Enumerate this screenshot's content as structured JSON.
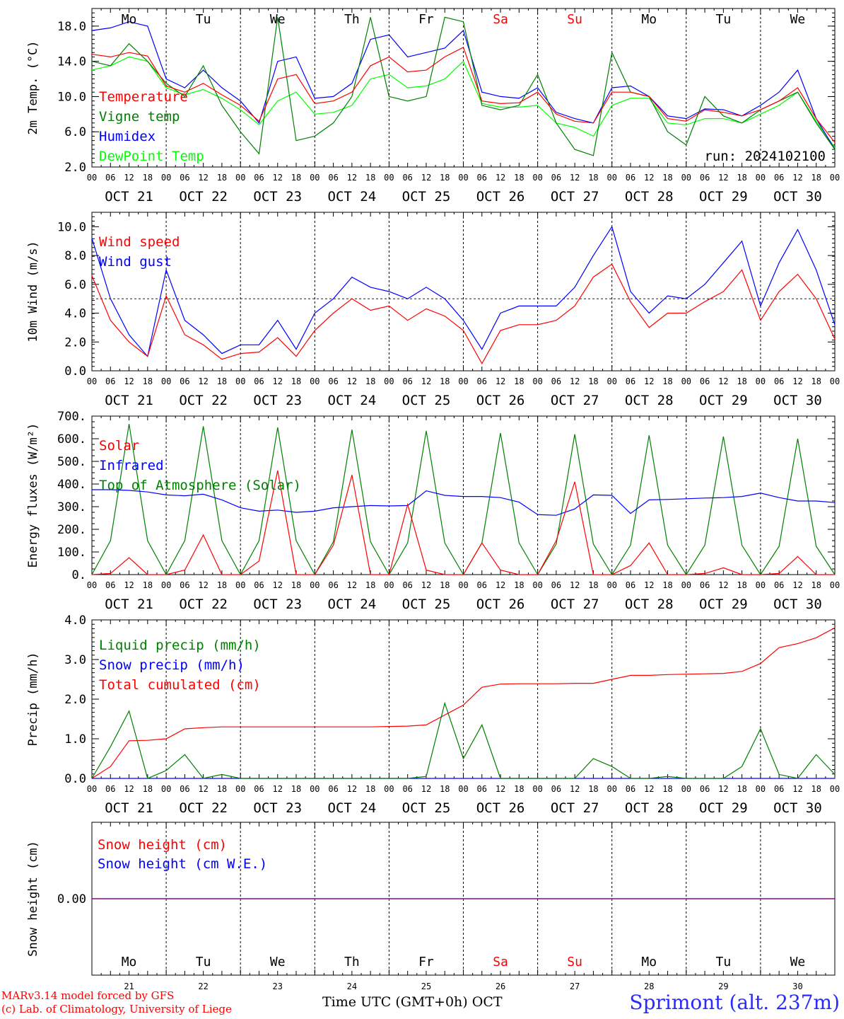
{
  "run_label": "run: 2024102100",
  "credits": {
    "line1": "MARv3.14 model forced by GFS",
    "line2": "(c) Lab. of Climatology, University of Liege"
  },
  "station": "Sprimont (alt. 237m)",
  "time_axis_label": "Time UTC (GMT+0h)",
  "month_label": "OCT",
  "weekend_color": "#ff0000",
  "weekdays": [
    "Mo",
    "Tu",
    "We",
    "Th",
    "Fr",
    "Sa",
    "Su",
    "Mo",
    "Tu",
    "We"
  ],
  "weekend_flags": [
    false,
    false,
    false,
    false,
    false,
    true,
    true,
    false,
    false,
    false
  ],
  "day_dates": [
    "OCT 21",
    "OCT 22",
    "OCT 23",
    "OCT 24",
    "OCT 25",
    "OCT 26",
    "OCT 27",
    "OCT 28",
    "OCT 29",
    "OCT 30"
  ],
  "day_numbers": [
    "21",
    "22",
    "23",
    "24",
    "25",
    "26",
    "27",
    "28",
    "29",
    "30"
  ],
  "hour_labels": [
    "00",
    "06",
    "12",
    "18"
  ],
  "chart_data": [
    {
      "id": "temperature",
      "type": "line",
      "ylabel": "2m Temp. (°C)",
      "ylim": [
        2,
        20
      ],
      "yticks": [
        2,
        6,
        10,
        14,
        18
      ],
      "ytick_labels": [
        "2.0",
        "6.0",
        "10.0",
        "14.0",
        "18.0"
      ],
      "x": [
        0,
        6,
        12,
        18,
        24,
        30,
        36,
        42,
        48,
        54,
        60,
        66,
        72,
        78,
        84,
        90,
        96,
        102,
        108,
        114,
        120,
        126,
        132,
        138,
        144,
        150,
        156,
        162,
        168,
        174,
        180,
        186,
        192,
        198,
        204,
        210,
        216,
        222,
        228,
        234,
        240
      ],
      "series": [
        {
          "name": "Temperature",
          "color": "#ff0000",
          "values": [
            14.8,
            14.5,
            15.0,
            14.6,
            11.2,
            10.5,
            11.5,
            10.2,
            9.0,
            7.2,
            12.0,
            12.5,
            9.2,
            9.5,
            10.5,
            13.5,
            14.5,
            12.8,
            13.0,
            14.5,
            15.6,
            9.5,
            9.2,
            9.3,
            10.5,
            8.0,
            7.2,
            7.0,
            10.5,
            10.5,
            10.0,
            7.5,
            7.2,
            8.5,
            8.2,
            7.8,
            8.5,
            9.5,
            11.0,
            7.5,
            4.8
          ]
        },
        {
          "name": "Vigne temp",
          "color": "#008000",
          "values": [
            14.0,
            13.5,
            16.0,
            14.0,
            11.5,
            10.0,
            13.5,
            9.0,
            6.0,
            3.5,
            19.0,
            5.0,
            5.5,
            7.0,
            10.0,
            19.0,
            10.0,
            9.5,
            10.0,
            19.0,
            18.5,
            9.0,
            8.5,
            9.0,
            12.5,
            7.0,
            4.0,
            3.3,
            15.0,
            10.5,
            10.0,
            6.0,
            4.5,
            10.0,
            7.8,
            7.0,
            8.5,
            9.5,
            10.5,
            7.0,
            4.0
          ]
        },
        {
          "name": "Humidex",
          "color": "#0000ff",
          "values": [
            17.5,
            17.8,
            18.5,
            18.0,
            12.0,
            11.0,
            13.0,
            11.0,
            9.5,
            7.0,
            14.0,
            14.5,
            9.8,
            10.0,
            11.5,
            16.5,
            17.0,
            14.5,
            15.0,
            15.5,
            17.5,
            10.5,
            10.0,
            9.8,
            11.0,
            8.2,
            7.5,
            7.0,
            11.0,
            11.2,
            10.0,
            7.8,
            7.5,
            8.6,
            8.5,
            7.8,
            9.0,
            10.5,
            13.0,
            7.5,
            4.0
          ]
        },
        {
          "name": "DewPoint Temp",
          "color": "#00ff00",
          "values": [
            13.0,
            13.5,
            14.5,
            14.0,
            11.0,
            10.2,
            10.8,
            9.8,
            8.5,
            6.8,
            9.5,
            10.5,
            8.0,
            8.2,
            9.0,
            12.0,
            12.5,
            11.0,
            11.2,
            12.0,
            14.0,
            9.2,
            8.8,
            8.8,
            9.0,
            7.0,
            6.5,
            5.5,
            9.0,
            9.8,
            9.8,
            7.0,
            6.8,
            7.5,
            7.5,
            7.0,
            8.0,
            9.0,
            10.5,
            7.2,
            4.2
          ]
        }
      ]
    },
    {
      "id": "wind",
      "type": "line",
      "ylabel": "10m Wind (m/s)",
      "ylim": [
        0,
        11
      ],
      "yticks": [
        0,
        2,
        4,
        6,
        8,
        10
      ],
      "ytick_labels": [
        "0.0",
        "2.0",
        "4.0",
        "6.0",
        "8.0",
        "10.0"
      ],
      "reference_line": 5,
      "x": [
        0,
        6,
        12,
        18,
        24,
        30,
        36,
        42,
        48,
        54,
        60,
        66,
        72,
        78,
        84,
        90,
        96,
        102,
        108,
        114,
        120,
        126,
        132,
        138,
        144,
        150,
        156,
        162,
        168,
        174,
        180,
        186,
        192,
        198,
        204,
        210,
        216,
        222,
        228,
        234,
        240
      ],
      "series": [
        {
          "name": "Wind speed",
          "color": "#ff0000",
          "values": [
            6.6,
            3.5,
            2.0,
            1.0,
            5.2,
            2.5,
            1.8,
            0.8,
            1.2,
            1.3,
            2.3,
            1.0,
            2.8,
            4.0,
            5.0,
            4.2,
            4.5,
            3.5,
            4.3,
            3.8,
            2.8,
            0.5,
            2.8,
            3.2,
            3.2,
            3.5,
            4.5,
            6.5,
            7.4,
            4.8,
            3.0,
            4.0,
            4.0,
            4.8,
            5.5,
            7.0,
            3.5,
            5.5,
            6.7,
            5.0,
            2.2
          ]
        },
        {
          "name": "Wind gust",
          "color": "#0000ff",
          "values": [
            9.2,
            5.0,
            2.5,
            1.0,
            7.0,
            3.5,
            2.5,
            1.2,
            1.8,
            1.8,
            3.5,
            1.5,
            4.0,
            5.0,
            6.5,
            5.8,
            5.5,
            5.0,
            5.8,
            5.0,
            3.5,
            1.5,
            4.0,
            4.5,
            4.5,
            4.5,
            5.8,
            8.0,
            10.0,
            5.5,
            4.0,
            5.2,
            5.0,
            6.0,
            7.5,
            9.0,
            4.5,
            7.5,
            9.8,
            7.0,
            3.2
          ]
        }
      ]
    },
    {
      "id": "energy",
      "type": "line",
      "ylabel": "Energy fluxes (W/m²)",
      "ylim": [
        0,
        700
      ],
      "yticks": [
        0,
        100,
        200,
        300,
        400,
        500,
        600,
        700
      ],
      "ytick_labels": [
        "0.",
        "100.",
        "200.",
        "300.",
        "400.",
        "500.",
        "600.",
        "700."
      ],
      "x": [
        0,
        6,
        12,
        18,
        24,
        30,
        36,
        42,
        48,
        54,
        60,
        66,
        72,
        78,
        84,
        90,
        96,
        102,
        108,
        114,
        120,
        126,
        132,
        138,
        144,
        150,
        156,
        162,
        168,
        174,
        180,
        186,
        192,
        198,
        204,
        210,
        216,
        222,
        228,
        234,
        240
      ],
      "series": [
        {
          "name": "Solar",
          "color": "#ff0000",
          "values": [
            0,
            5,
            75,
            0,
            0,
            20,
            175,
            0,
            0,
            60,
            460,
            0,
            0,
            130,
            440,
            0,
            0,
            310,
            20,
            0,
            0,
            140,
            20,
            0,
            0,
            150,
            410,
            0,
            0,
            40,
            140,
            0,
            0,
            5,
            30,
            0,
            0,
            5,
            80,
            0,
            0
          ]
        },
        {
          "name": "Infrared",
          "color": "#0000ff",
          "values": [
            375,
            375,
            372,
            365,
            352,
            348,
            355,
            330,
            295,
            280,
            285,
            275,
            280,
            295,
            300,
            305,
            303,
            305,
            370,
            350,
            345,
            345,
            340,
            320,
            265,
            262,
            290,
            352,
            350,
            270,
            330,
            332,
            335,
            338,
            340,
            345,
            360,
            340,
            325,
            325,
            318
          ]
        },
        {
          "name": "Top of Atmosphere (Solar)",
          "color": "#008000",
          "values": [
            0,
            150,
            665,
            150,
            0,
            150,
            655,
            150,
            0,
            150,
            650,
            150,
            0,
            145,
            640,
            145,
            0,
            140,
            635,
            140,
            0,
            140,
            625,
            140,
            0,
            135,
            620,
            135,
            0,
            130,
            615,
            130,
            0,
            130,
            610,
            130,
            0,
            125,
            600,
            125,
            0
          ]
        }
      ]
    },
    {
      "id": "precip",
      "type": "line",
      "ylabel": "Precip (mm/h)",
      "ylim": [
        0,
        4
      ],
      "yticks": [
        0,
        1,
        2,
        3,
        4
      ],
      "ytick_labels": [
        "0.0",
        "1.0",
        "2.0",
        "3.0",
        "4.0"
      ],
      "x": [
        0,
        6,
        12,
        18,
        24,
        30,
        36,
        42,
        48,
        54,
        60,
        66,
        72,
        78,
        84,
        90,
        96,
        102,
        108,
        114,
        120,
        126,
        132,
        138,
        144,
        150,
        156,
        162,
        168,
        174,
        180,
        186,
        192,
        198,
        204,
        210,
        216,
        222,
        228,
        234,
        240
      ],
      "series": [
        {
          "name": "Liquid precip (mm/h)",
          "color": "#008000",
          "values": [
            0.0,
            0.8,
            1.7,
            0.0,
            0.2,
            0.6,
            0.0,
            0.1,
            0.0,
            0.0,
            0.0,
            0.0,
            0.0,
            0.0,
            0.0,
            0.0,
            0.0,
            0.0,
            0.05,
            1.9,
            0.5,
            1.35,
            0.0,
            0.0,
            0.0,
            0.0,
            0.0,
            0.5,
            0.3,
            0.0,
            0.0,
            0.05,
            0.0,
            0.0,
            0.0,
            0.3,
            1.25,
            0.1,
            0.0,
            0.6,
            0.1
          ]
        },
        {
          "name": "Snow precip (mm/h)",
          "color": "#0000ff",
          "values": [
            0,
            0,
            0,
            0,
            0,
            0,
            0,
            0,
            0,
            0,
            0,
            0,
            0,
            0,
            0,
            0,
            0,
            0,
            0,
            0,
            0,
            0,
            0,
            0,
            0,
            0,
            0,
            0,
            0,
            0,
            0,
            0,
            0,
            0,
            0,
            0,
            0,
            0,
            0,
            0,
            0
          ]
        },
        {
          "name": "Total cumulated (cm)",
          "color": "#ff0000",
          "values": [
            0.0,
            0.3,
            0.95,
            0.96,
            1.0,
            1.25,
            1.28,
            1.3,
            1.3,
            1.3,
            1.3,
            1.3,
            1.3,
            1.3,
            1.3,
            1.3,
            1.31,
            1.32,
            1.35,
            1.6,
            1.85,
            2.3,
            2.38,
            2.39,
            2.39,
            2.39,
            2.4,
            2.4,
            2.5,
            2.6,
            2.6,
            2.62,
            2.63,
            2.64,
            2.65,
            2.7,
            2.9,
            3.3,
            3.4,
            3.55,
            3.8
          ]
        }
      ]
    },
    {
      "id": "snow",
      "type": "line",
      "ylabel": "Snow height (cm)",
      "ylim": [
        -1,
        1
      ],
      "yticks": [
        0
      ],
      "ytick_labels": [
        "0.00"
      ],
      "x": [
        0,
        240
      ],
      "series": [
        {
          "name": "Snow height (cm)",
          "color": "#ff0000",
          "values": [
            0,
            0
          ]
        },
        {
          "name": "Snow height (cm W.E.)",
          "color": "#0000ff",
          "values": [
            0,
            0
          ]
        }
      ]
    }
  ]
}
